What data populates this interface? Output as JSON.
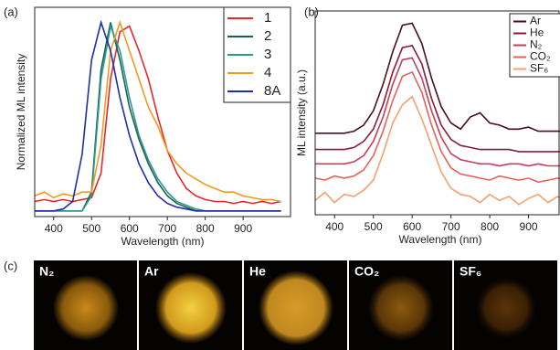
{
  "chart_data": [
    {
      "type": "line",
      "panel_label": "(a)",
      "x_label": "Wavelength (nm)",
      "y_label": "Normalized ML intensity",
      "x": [
        350,
        375,
        400,
        425,
        450,
        475,
        500,
        525,
        550,
        575,
        600,
        625,
        650,
        675,
        700,
        725,
        750,
        775,
        800,
        825,
        850,
        875,
        900,
        925,
        950,
        975,
        1000
      ],
      "xlim": [
        350,
        1025
      ],
      "ylim": [
        -0.03,
        1.08
      ],
      "xticks": [
        400,
        500,
        600,
        700,
        800,
        900
      ],
      "legend": "upper right",
      "series": [
        {
          "name": "1",
          "color": "#e8262a",
          "values": [
            0.05,
            0.06,
            0.05,
            0.06,
            0.05,
            0.06,
            0.07,
            0.2,
            0.7,
            0.95,
            0.98,
            0.85,
            0.7,
            0.5,
            0.32,
            0.2,
            0.12,
            0.08,
            0.06,
            0.05,
            0.05,
            0.04,
            0.05,
            0.04,
            0.05,
            0.04,
            0.05
          ]
        },
        {
          "name": "2",
          "color": "#1e5e5a",
          "values": [
            0,
            0,
            0,
            0,
            0,
            0,
            0.1,
            0.75,
            1.0,
            0.8,
            0.55,
            0.38,
            0.25,
            0.15,
            0.08,
            0.04,
            0.02,
            0,
            0,
            0,
            0,
            0,
            0,
            0,
            0,
            0,
            0
          ]
        },
        {
          "name": "3",
          "color": "#2a9a8a",
          "values": [
            0,
            0,
            0,
            0,
            0,
            0,
            0.08,
            0.7,
            0.98,
            0.85,
            0.6,
            0.4,
            0.27,
            0.17,
            0.1,
            0.05,
            0.03,
            0.01,
            0,
            0,
            0,
            0,
            0,
            0,
            0,
            0,
            0
          ]
        },
        {
          "name": "4",
          "color": "#f39a1e",
          "values": [
            0.08,
            0.1,
            0.07,
            0.09,
            0.08,
            0.1,
            0.1,
            0.35,
            0.85,
            1.0,
            0.85,
            0.7,
            0.55,
            0.45,
            0.32,
            0.25,
            0.2,
            0.17,
            0.14,
            0.12,
            0.1,
            0.1,
            0.08,
            0.07,
            0.06,
            0.06,
            0.05
          ]
        },
        {
          "name": "8A",
          "color": "#1f2fa8",
          "values": [
            0,
            0,
            0,
            0.01,
            0.05,
            0.3,
            0.8,
            1.0,
            0.85,
            0.6,
            0.4,
            0.25,
            0.15,
            0.08,
            0.04,
            0.02,
            0.01,
            0,
            0,
            0,
            0,
            0,
            0,
            0,
            0,
            0,
            0
          ]
        }
      ]
    },
    {
      "type": "line",
      "panel_label": "(b)",
      "x_label": "Wavelength (nm)",
      "y_label": "ML intensity (a.u.)",
      "x": [
        350,
        375,
        400,
        425,
        450,
        475,
        500,
        525,
        550,
        575,
        600,
        625,
        650,
        675,
        700,
        725,
        750,
        775,
        800,
        825,
        850,
        875,
        900,
        925,
        950,
        975,
        1000
      ],
      "xlim": [
        350,
        1000
      ],
      "ylim": [
        0,
        1
      ],
      "xticks": [
        400,
        500,
        600,
        700,
        800,
        900
      ],
      "legend": "upper right",
      "series": [
        {
          "name": "Ar",
          "color": "#4a0e1e",
          "values": [
            0.4,
            0.4,
            0.4,
            0.4,
            0.41,
            0.44,
            0.51,
            0.64,
            0.8,
            0.93,
            0.94,
            0.84,
            0.67,
            0.53,
            0.45,
            0.42,
            0.48,
            0.5,
            0.45,
            0.44,
            0.42,
            0.42,
            0.43,
            0.41,
            0.41,
            0.41,
            0.41
          ]
        },
        {
          "name": "He",
          "color": "#8b1a3a",
          "values": [
            0.32,
            0.32,
            0.32,
            0.32,
            0.33,
            0.36,
            0.42,
            0.54,
            0.7,
            0.82,
            0.83,
            0.74,
            0.57,
            0.44,
            0.37,
            0.34,
            0.33,
            0.32,
            0.32,
            0.32,
            0.32,
            0.31,
            0.31,
            0.31,
            0.31,
            0.31,
            0.31
          ]
        },
        {
          "name": "N₂",
          "color": "#c0405a",
          "values": [
            0.25,
            0.25,
            0.25,
            0.25,
            0.26,
            0.29,
            0.36,
            0.48,
            0.64,
            0.76,
            0.77,
            0.67,
            0.51,
            0.38,
            0.3,
            0.27,
            0.26,
            0.25,
            0.25,
            0.24,
            0.25,
            0.25,
            0.24,
            0.25,
            0.24,
            0.24,
            0.24
          ]
        },
        {
          "name": "CO₂",
          "color": "#e8605a",
          "values": [
            0.18,
            0.17,
            0.19,
            0.18,
            0.19,
            0.22,
            0.29,
            0.41,
            0.56,
            0.68,
            0.7,
            0.6,
            0.44,
            0.31,
            0.23,
            0.2,
            0.19,
            0.18,
            0.17,
            0.19,
            0.18,
            0.17,
            0.18,
            0.16,
            0.17,
            0.18,
            0.17
          ]
        },
        {
          "name": "SF₆",
          "color": "#f4a070",
          "values": [
            0.07,
            0.11,
            0.06,
            0.1,
            0.09,
            0.12,
            0.17,
            0.3,
            0.45,
            0.54,
            0.58,
            0.47,
            0.34,
            0.21,
            0.13,
            0.1,
            0.09,
            0.06,
            0.1,
            0.07,
            0.09,
            0.05,
            0.08,
            0.1,
            0.06,
            0.09,
            0.07
          ]
        }
      ]
    }
  ],
  "panel_c": {
    "label": "(c)",
    "images": [
      {
        "label": "N₂"
      },
      {
        "label": "Ar"
      },
      {
        "label": "He"
      },
      {
        "label": "CO₂"
      },
      {
        "label": "SF₆"
      }
    ]
  }
}
